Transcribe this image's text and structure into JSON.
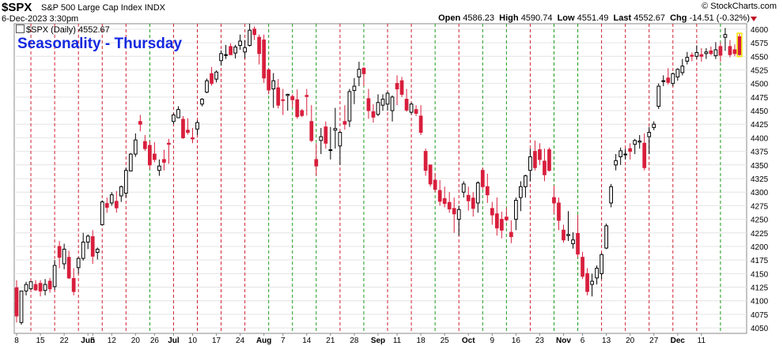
{
  "header": {
    "symbol": "$SPX",
    "name": "S&P 500 Large Cap Index",
    "exchange": "INDX",
    "date": "6-Dec-2023 3:30pm",
    "brand": "© StockCharts.com",
    "open_label": "Open",
    "open": "4586.23",
    "high_label": "High",
    "high": "4590.74",
    "low_label": "Low",
    "low": "4551.49",
    "last_label": "Last",
    "last": "4552.67",
    "chg_label": "Chg",
    "chg": "-14.51 (-0.32%)"
  },
  "legend": {
    "text": "$SPX (Daily) 4552.67"
  },
  "chart_data": {
    "type": "candlestick",
    "title": "Seasonality - Thursday",
    "ylim": [
      4040,
      4610
    ],
    "y_ticks": [
      4050,
      4075,
      4100,
      4125,
      4150,
      4175,
      4200,
      4225,
      4250,
      4275,
      4300,
      4325,
      4350,
      4375,
      4400,
      4425,
      4450,
      4475,
      4500,
      4525,
      4550,
      4575,
      4600
    ],
    "x_labels": [
      "8",
      "15",
      "22",
      "Jun",
      "5",
      "12",
      "20",
      "26",
      "Jul",
      "10",
      "17",
      "24",
      "Aug",
      "7",
      "14",
      "21",
      "28",
      "Sep",
      "11",
      "18",
      "25",
      "Oct",
      "9",
      "16",
      "23",
      "Nov",
      "6",
      "13",
      "20",
      "27",
      "Dec",
      "11"
    ],
    "x_label_days": [
      0,
      5,
      10,
      15,
      16,
      20,
      25,
      29,
      33,
      37,
      42,
      47,
      52,
      56,
      61,
      66,
      71,
      76,
      80,
      85,
      90,
      95,
      100,
      105,
      110,
      115,
      119,
      124,
      129,
      134,
      139,
      144
    ],
    "weekday_offset": 0,
    "thursday_day_markers": "red dashed = up Thursday, green dashed = down Thursday",
    "candles": [
      [
        4124,
        4138,
        4060,
        4072
      ],
      [
        4060,
        4118,
        4056,
        4118
      ],
      [
        4118,
        4135,
        4110,
        4130
      ],
      [
        4122,
        4135,
        4120,
        4135
      ],
      [
        4130,
        4138,
        4118,
        4120
      ],
      [
        4132,
        4138,
        4108,
        4118
      ],
      [
        4119,
        4140,
        4110,
        4130
      ],
      [
        4136,
        4142,
        4115,
        4122
      ],
      [
        4126,
        4175,
        4120,
        4165
      ],
      [
        4200,
        4210,
        4160,
        4180
      ],
      [
        4168,
        4205,
        4158,
        4195
      ],
      [
        4180,
        4192,
        4140,
        4142
      ],
      [
        4141,
        4160,
        4110,
        4117
      ],
      [
        4161,
        4180,
        4150,
        4178
      ],
      [
        4178,
        4225,
        4174,
        4208
      ],
      [
        4208,
        4222,
        4195,
        4219
      ],
      [
        4218,
        4230,
        4168,
        4182
      ],
      [
        4189,
        4198,
        4176,
        4195
      ],
      [
        4240,
        4285,
        4239,
        4282
      ],
      [
        4279,
        4290,
        4262,
        4272
      ],
      [
        4280,
        4300,
        4275,
        4295
      ],
      [
        4283,
        4302,
        4262,
        4271
      ],
      [
        4293,
        4312,
        4282,
        4310
      ],
      [
        4298,
        4345,
        4290,
        4340
      ],
      [
        4339,
        4372,
        4338,
        4370
      ],
      [
        4370,
        4408,
        4365,
        4396
      ],
      [
        4430,
        4442,
        4412,
        4425
      ],
      [
        4393,
        4405,
        4376,
        4380
      ],
      [
        4386,
        4394,
        4342,
        4350
      ],
      [
        4370,
        4392,
        4355,
        4360
      ],
      [
        4340,
        4360,
        4330,
        4348
      ],
      [
        4360,
        4378,
        4340,
        4355
      ],
      [
        4390,
        4398,
        4352,
        4388
      ],
      [
        4430,
        4445,
        4425,
        4442
      ],
      [
        4437,
        4458,
        4436,
        4452
      ],
      [
        4434,
        4440,
        4398,
        4400
      ],
      [
        4414,
        4436,
        4406,
        4410
      ],
      [
        4400,
        4418,
        4390,
        4398
      ],
      [
        4416,
        4432,
        4405,
        4428
      ],
      [
        4462,
        4473,
        4458,
        4471
      ],
      [
        4484,
        4509,
        4482,
        4505
      ],
      [
        4518,
        4530,
        4496,
        4500
      ],
      [
        4508,
        4524,
        4502,
        4521
      ],
      [
        4542,
        4561,
        4533,
        4555
      ],
      [
        4552,
        4571,
        4545,
        4553
      ],
      [
        4568,
        4574,
        4552,
        4553
      ],
      [
        4556,
        4571,
        4546,
        4567
      ],
      [
        4570,
        4590,
        4562,
        4578
      ],
      [
        4558,
        4580,
        4546,
        4566
      ],
      [
        4570,
        4610,
        4568,
        4598
      ],
      [
        4600,
        4605,
        4580,
        4590
      ],
      [
        4585,
        4590,
        4535,
        4555
      ],
      [
        4580,
        4590,
        4501,
        4510
      ],
      [
        4525,
        4528,
        4480,
        4488
      ],
      [
        4490,
        4519,
        4455,
        4505
      ],
      [
        4492,
        4508,
        4454,
        4460
      ],
      [
        4470,
        4490,
        4442,
        4469
      ],
      [
        4478,
        4481,
        4450,
        4480
      ],
      [
        4476,
        4480,
        4456,
        4470
      ],
      [
        4470,
        4489,
        4435,
        4439
      ],
      [
        4450,
        4453,
        4438,
        4441
      ],
      [
        4478,
        4490,
        4441,
        4476
      ],
      [
        4430,
        4460,
        4392,
        4395
      ],
      [
        4360,
        4390,
        4330,
        4348
      ],
      [
        4395,
        4418,
        4370,
        4402
      ],
      [
        4420,
        4430,
        4380,
        4390
      ],
      [
        4378,
        4420,
        4360,
        4378
      ],
      [
        4414,
        4455,
        4380,
        4417
      ],
      [
        4385,
        4412,
        4350,
        4410
      ],
      [
        4430,
        4460,
        4415,
        4425
      ],
      [
        4431,
        4490,
        4420,
        4485
      ],
      [
        4487,
        4510,
        4462,
        4495
      ],
      [
        4512,
        4540,
        4495,
        4526
      ],
      [
        4528,
        4530,
        4495,
        4518
      ],
      [
        4472,
        4490,
        4435,
        4450
      ],
      [
        4448,
        4462,
        4428,
        4438
      ],
      [
        4443,
        4480,
        4440,
        4465
      ],
      [
        4460,
        4480,
        4450,
        4471
      ],
      [
        4462,
        4485,
        4450,
        4482
      ],
      [
        4450,
        4478,
        4430,
        4475
      ],
      [
        4500,
        4515,
        4460,
        4490
      ],
      [
        4505,
        4512,
        4475,
        4480
      ],
      [
        4471,
        4490,
        4448,
        4451
      ],
      [
        4447,
        4465,
        4443,
        4462
      ],
      [
        4452,
        4460,
        4440,
        4445
      ],
      [
        4440,
        4460,
        4405,
        4410
      ],
      [
        4375,
        4380,
        4330,
        4340
      ],
      [
        4350,
        4350,
        4310,
        4315
      ],
      [
        4322,
        4335,
        4300,
        4305
      ],
      [
        4303,
        4322,
        4275,
        4283
      ],
      [
        4288,
        4310,
        4272,
        4279
      ],
      [
        4281,
        4300,
        4262,
        4269
      ],
      [
        4270,
        4290,
        4225,
        4260
      ],
      [
        4250,
        4275,
        4220,
        4268
      ],
      [
        4300,
        4320,
        4290,
        4315
      ],
      [
        4294,
        4310,
        4266,
        4284
      ],
      [
        4289,
        4300,
        4255,
        4270
      ],
      [
        4280,
        4320,
        4262,
        4317
      ],
      [
        4340,
        4345,
        4305,
        4310
      ],
      [
        4310,
        4334,
        4280,
        4295
      ],
      [
        4270,
        4282,
        4240,
        4258
      ],
      [
        4260,
        4290,
        4220,
        4234
      ],
      [
        4250,
        4264,
        4215,
        4230
      ],
      [
        4254,
        4271,
        4246,
        4249
      ],
      [
        4226,
        4248,
        4206,
        4218
      ],
      [
        4250,
        4290,
        4230,
        4285
      ],
      [
        4290,
        4320,
        4265,
        4310
      ],
      [
        4310,
        4332,
        4290,
        4330
      ],
      [
        4340,
        4380,
        4320,
        4365
      ],
      [
        4375,
        4395,
        4340,
        4345
      ],
      [
        4378,
        4390,
        4350,
        4360
      ],
      [
        4357,
        4380,
        4320,
        4332
      ],
      [
        4378,
        4382,
        4338,
        4340
      ],
      [
        4290,
        4312,
        4260,
        4280
      ],
      [
        4280,
        4290,
        4230,
        4248
      ],
      [
        4230,
        4240,
        4207,
        4212
      ],
      [
        4220,
        4265,
        4210,
        4222
      ],
      [
        4205,
        4226,
        4196,
        4212
      ],
      [
        4224,
        4258,
        4180,
        4186
      ],
      [
        4180,
        4190,
        4140,
        4145
      ],
      [
        4150,
        4160,
        4110,
        4117
      ],
      [
        4130,
        4150,
        4108,
        4136
      ],
      [
        4142,
        4165,
        4130,
        4160
      ],
      [
        4150,
        4188,
        4140,
        4185
      ],
      [
        4197,
        4242,
        4195,
        4238
      ],
      [
        4280,
        4315,
        4272,
        4310
      ],
      [
        4350,
        4370,
        4340,
        4358
      ],
      [
        4365,
        4382,
        4350,
        4376
      ],
      [
        4370,
        4380,
        4360,
        4370
      ],
      [
        4380,
        4390,
        4360,
        4375
      ],
      [
        4388,
        4398,
        4370,
        4395
      ],
      [
        4392,
        4405,
        4380,
        4394
      ],
      [
        4390,
        4408,
        4340,
        4345
      ],
      [
        4402,
        4420,
        4370,
        4410
      ],
      [
        4419,
        4430,
        4414,
        4425
      ],
      [
        4458,
        4500,
        4453,
        4495
      ],
      [
        4505,
        4515,
        4495,
        4505
      ],
      [
        4510,
        4528,
        4498,
        4502
      ],
      [
        4500,
        4520,
        4495,
        4518
      ],
      [
        4512,
        4528,
        4505,
        4526
      ],
      [
        4520,
        4545,
        4515,
        4532
      ],
      [
        4541,
        4558,
        4535,
        4548
      ],
      [
        4552,
        4557,
        4541,
        4550
      ],
      [
        4550,
        4570,
        4545,
        4557
      ],
      [
        4553,
        4565,
        4540,
        4550
      ],
      [
        4555,
        4565,
        4545,
        4558
      ],
      [
        4560,
        4568,
        4552,
        4555
      ],
      [
        4551,
        4576,
        4545,
        4562
      ],
      [
        4568,
        4576,
        4540,
        4552
      ],
      [
        4585,
        4602,
        4560,
        4590
      ],
      [
        4568,
        4580,
        4548,
        4553
      ],
      [
        4562,
        4572,
        4550,
        4555
      ],
      [
        4586,
        4591,
        4551,
        4553
      ]
    ]
  },
  "colors": {
    "up": "#000000",
    "down": "#d81e3c",
    "up_marker": "#d01f2f",
    "down_marker": "#1a9a1a",
    "grid": "#e4e4e4",
    "title": "#1428e0"
  }
}
